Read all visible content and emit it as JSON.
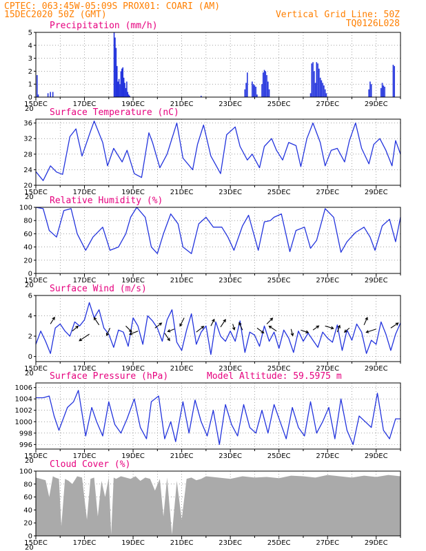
{
  "header": {
    "line1": "CPTEC:   063:45W-05:09S   PROX01: COARI (AM)",
    "line2": "15DEC2020 50Z (GMT)",
    "grid_note": "Vertical Grid Line: 50Z",
    "code": "TQ0126L028"
  },
  "x_ticks": [
    "15DEC",
    "17DEC",
    "19DEC",
    "21DEC",
    "23DEC",
    "25DEC",
    "27DEC",
    "29DEC"
  ],
  "x_subtick": "20",
  "colors": {
    "line": "#2233dd",
    "bar": "#2233dd",
    "cloud": "#aaaaaa",
    "title": "#e6007e",
    "header": "#ff7f00",
    "arrow": "#000000"
  },
  "chart_data": [
    {
      "id": "precip",
      "type": "bar",
      "title": "Precipitation (mm/h)",
      "ylim": [
        0,
        5
      ],
      "yticks": [
        0,
        1,
        2,
        3,
        4,
        5
      ],
      "x_unit": "days since 15DEC 00Z",
      "x": [
        0.05,
        0.1,
        0.5,
        0.6,
        0.7,
        3.22,
        3.26,
        3.3,
        3.34,
        3.38,
        3.42,
        3.46,
        3.5,
        3.54,
        3.58,
        3.62,
        3.66,
        3.7,
        3.74,
        3.78,
        3.82,
        3.86,
        6.8,
        8.6,
        8.65,
        8.7,
        8.9,
        8.95,
        9.0,
        9.05,
        9.1,
        9.3,
        9.35,
        9.4,
        9.45,
        9.5,
        9.55,
        9.6,
        11.3,
        11.35,
        11.4,
        11.45,
        11.5,
        11.55,
        11.6,
        11.65,
        11.7,
        11.75,
        11.8,
        11.85,
        11.9,
        11.95,
        13.7,
        13.75,
        13.8,
        14.2,
        14.25,
        14.3,
        14.35,
        14.7,
        14.75
      ],
      "values": [
        1.7,
        0.2,
        0.3,
        0.4,
        0.4,
        5.0,
        4.6,
        3.8,
        2.4,
        1.2,
        1.4,
        1.0,
        2.0,
        2.2,
        2.3,
        1.5,
        1.1,
        0.7,
        1.2,
        0.4,
        0.2,
        0.1,
        0.1,
        0.6,
        1.1,
        1.9,
        1.2,
        1.0,
        0.9,
        0.8,
        0.2,
        1.0,
        1.9,
        2.1,
        2.0,
        1.7,
        1.2,
        0.6,
        0.3,
        2.6,
        2.7,
        2.0,
        1.1,
        2.7,
        2.6,
        2.2,
        1.5,
        1.3,
        1.1,
        0.9,
        0.6,
        0.3,
        0.6,
        1.2,
        1.0,
        0.7,
        1.1,
        0.9,
        0.8,
        2.5,
        2.4
      ]
    },
    {
      "id": "temp",
      "type": "line",
      "title": "Surface Temperature (nC)",
      "ylim": [
        20,
        37
      ],
      "yticks": [
        20,
        24,
        28,
        32,
        36
      ],
      "x": [
        0,
        0.3,
        0.6,
        0.85,
        1.1,
        1.4,
        1.65,
        1.9,
        2.2,
        2.4,
        2.75,
        2.95,
        3.2,
        3.55,
        3.75,
        4.05,
        4.35,
        4.65,
        4.8,
        5.1,
        5.4,
        5.8,
        6.05,
        6.45,
        6.65,
        6.9,
        7.2,
        7.6,
        7.85,
        8.2,
        8.4,
        8.7,
        8.9,
        9.2,
        9.4,
        9.7,
        9.9,
        10.15,
        10.4,
        10.7,
        10.9,
        11.15,
        11.4,
        11.7,
        11.9,
        12.15,
        12.4,
        12.7,
        12.9,
        13.15,
        13.4,
        13.7,
        13.9,
        14.15,
        14.4,
        14.65,
        14.8,
        15.0
      ],
      "values": [
        23.5,
        21.2,
        25,
        23.4,
        22.8,
        32.5,
        34.5,
        27.5,
        33,
        36.5,
        31,
        25,
        29.5,
        26,
        29,
        23,
        22,
        33.5,
        31,
        24.5,
        28,
        36,
        27,
        24,
        30.5,
        35.5,
        27.5,
        23,
        33,
        35,
        30,
        26.5,
        28,
        24.5,
        30,
        32,
        29,
        26.5,
        31,
        30.2,
        24.8,
        32,
        36,
        31,
        25,
        29,
        29.5,
        26,
        31.5,
        36,
        29.5,
        25.5,
        30.5,
        32,
        29,
        25,
        31.5,
        28
      ]
    },
    {
      "id": "rh",
      "type": "line",
      "title": "Relative Humidity (%)",
      "ylim": [
        0,
        100
      ],
      "yticks": [
        0,
        20,
        40,
        60,
        80,
        100
      ],
      "x": [
        0,
        0.3,
        0.55,
        0.85,
        1.15,
        1.45,
        1.7,
        2.05,
        2.35,
        2.75,
        3.05,
        3.4,
        3.7,
        3.9,
        4.15,
        4.5,
        4.75,
        5.0,
        5.25,
        5.55,
        5.85,
        6.05,
        6.4,
        6.7,
        7.0,
        7.3,
        7.65,
        7.9,
        8.15,
        8.5,
        8.75,
        9.15,
        9.4,
        9.65,
        9.8,
        10.1,
        10.45,
        10.7,
        11.05,
        11.3,
        11.55,
        11.9,
        12.25,
        12.55,
        12.8,
        13.15,
        13.5,
        13.75,
        13.95,
        14.25,
        14.55,
        14.8,
        15.0
      ],
      "values": [
        100,
        98,
        65,
        55,
        95,
        98,
        60,
        35,
        55,
        70,
        35,
        40,
        60,
        85,
        100,
        85,
        40,
        30,
        60,
        90,
        75,
        40,
        30,
        75,
        85,
        70,
        70,
        55,
        35,
        72,
        88,
        35,
        78,
        80,
        85,
        90,
        33,
        65,
        70,
        38,
        50,
        98,
        85,
        32,
        48,
        62,
        70,
        55,
        35,
        72,
        82,
        48,
        85
      ]
    },
    {
      "id": "wind",
      "type": "line",
      "title": "Surface Wind (m/s)",
      "ylim": [
        -0.5,
        6
      ],
      "yticks": [
        0,
        2,
        4,
        6
      ],
      "x": [
        0,
        0.2,
        0.4,
        0.6,
        0.8,
        1.0,
        1.2,
        1.4,
        1.6,
        1.8,
        2.0,
        2.2,
        2.4,
        2.6,
        2.8,
        3.0,
        3.2,
        3.4,
        3.6,
        3.8,
        4.0,
        4.2,
        4.4,
        4.6,
        4.8,
        5.0,
        5.2,
        5.4,
        5.6,
        5.8,
        6.0,
        6.2,
        6.4,
        6.6,
        6.8,
        7.0,
        7.2,
        7.4,
        7.6,
        7.8,
        8.0,
        8.2,
        8.4,
        8.6,
        8.8,
        9.0,
        9.2,
        9.4,
        9.6,
        9.8,
        10.0,
        10.2,
        10.4,
        10.6,
        10.8,
        11.0,
        11.2,
        11.4,
        11.6,
        11.8,
        12.0,
        12.2,
        12.4,
        12.6,
        12.8,
        13.0,
        13.2,
        13.4,
        13.6,
        13.8,
        14.0,
        14.2,
        14.4,
        14.6,
        14.8,
        15.0
      ],
      "values": [
        1.2,
        2.5,
        1.5,
        0.3,
        2.8,
        3.2,
        2.5,
        2.0,
        3.4,
        3.0,
        3.6,
        5.3,
        3.8,
        4.6,
        2.8,
        2.2,
        0.9,
        2.6,
        2.4,
        1.0,
        3.8,
        3.0,
        1.2,
        4.0,
        3.5,
        2.8,
        1.5,
        3.6,
        4.6,
        1.4,
        0.6,
        2.6,
        4.2,
        1.2,
        2.4,
        3.0,
        0.2,
        3.4,
        2.0,
        1.5,
        2.5,
        1.5,
        3.5,
        0.4,
        2.4,
        2.1,
        1.0,
        3.0,
        1.5,
        2.4,
        0.8,
        2.6,
        1.8,
        0.4,
        2.5,
        1.5,
        2.3,
        1.6,
        0.9,
        2.4,
        1.8,
        1.4,
        3.1,
        0.6,
        2.6,
        1.6,
        3.2,
        2.4,
        0.3,
        1.6,
        1.2,
        3.4,
        2.2,
        0.6,
        2.2,
        3.3
      ]
    },
    {
      "id": "pressure",
      "type": "line",
      "title": "Surface Pressure (hPa)",
      "annotation": "Model Altitude: 59.5975  m",
      "ylim": [
        995.2,
        1006.8
      ],
      "yticks": [
        996,
        998,
        1000,
        1002,
        1004,
        1006
      ],
      "x": [
        0,
        0.3,
        0.55,
        0.75,
        0.95,
        1.3,
        1.55,
        1.75,
        2.05,
        2.3,
        2.5,
        2.75,
        3.0,
        3.25,
        3.5,
        3.75,
        4.05,
        4.3,
        4.55,
        4.75,
        5.05,
        5.3,
        5.55,
        5.75,
        6.05,
        6.3,
        6.55,
        6.8,
        7.05,
        7.3,
        7.55,
        7.8,
        8.05,
        8.3,
        8.55,
        8.8,
        9.05,
        9.3,
        9.55,
        9.8,
        10.05,
        10.3,
        10.55,
        10.8,
        11.05,
        11.3,
        11.55,
        11.8,
        12.05,
        12.3,
        12.55,
        12.8,
        13.05,
        13.3,
        13.55,
        13.8,
        14.05,
        14.3,
        14.55,
        14.8,
        15.0
      ],
      "values": [
        1004.2,
        1004.2,
        1004.5,
        1001,
        998.5,
        1002.5,
        1003.5,
        1005.5,
        997.5,
        1002.5,
        1000,
        997.5,
        1003.5,
        999.5,
        998,
        1000.5,
        1004,
        999,
        997,
        1003.5,
        1004.5,
        997,
        1000,
        996.5,
        1003.5,
        998,
        1003.8,
        1000,
        997.5,
        1002,
        996,
        1003,
        999.5,
        997.5,
        1003,
        999,
        998,
        1002,
        998,
        1003,
        1000,
        997,
        1002.5,
        999,
        997.5,
        1003.5,
        998,
        1000,
        1002.5,
        997,
        1004,
        998.5,
        996,
        1001,
        1000,
        999,
        1005,
        998.5,
        997,
        1000.5,
        1000.5
      ]
    },
    {
      "id": "cloud",
      "type": "area",
      "title": "Cloud Cover (%)",
      "ylim": [
        0,
        100
      ],
      "yticks": [
        0,
        20,
        40,
        60,
        80,
        100
      ],
      "x": [
        0,
        0.2,
        0.4,
        0.55,
        0.7,
        0.8,
        0.95,
        1.05,
        1.2,
        1.35,
        1.5,
        1.7,
        1.9,
        2.1,
        2.25,
        2.4,
        2.55,
        2.7,
        2.85,
        3.0,
        3.1,
        3.2,
        3.3,
        3.5,
        3.7,
        3.9,
        4.1,
        4.3,
        4.5,
        4.7,
        4.9,
        5.1,
        5.25,
        5.4,
        5.6,
        5.8,
        6.0,
        6.2,
        6.4,
        6.6,
        6.8,
        7.0,
        7.5,
        8.0,
        8.5,
        9.0,
        9.5,
        10.0,
        10.5,
        11.0,
        11.5,
        12.0,
        12.5,
        13.0,
        13.5,
        14.0,
        14.5,
        15.0
      ],
      "values": [
        90,
        88,
        86,
        60,
        92,
        90,
        88,
        15,
        88,
        85,
        80,
        92,
        90,
        25,
        88,
        90,
        30,
        85,
        60,
        90,
        2,
        90,
        88,
        92,
        90,
        88,
        92,
        85,
        90,
        88,
        70,
        88,
        30,
        90,
        2,
        85,
        25,
        88,
        90,
        86,
        88,
        92,
        90,
        88,
        92,
        90,
        91,
        89,
        93,
        92,
        90,
        94,
        92,
        90,
        93,
        91,
        94,
        92
      ]
    }
  ],
  "wind_arrows": {
    "x": [
      0.6,
      1.5,
      2.2,
      2.6,
      3.05,
      3.7,
      4.2,
      4.9,
      5.3,
      5.7,
      6.1,
      6.6,
      7.2,
      7.6,
      8.1,
      8.5,
      9.1,
      9.5,
      9.9,
      10.5,
      10.9,
      11.4,
      11.9,
      12.4,
      12.9,
      13.5,
      14.0,
      14.6
    ],
    "speed": [
      3.2,
      2.5,
      2.2,
      3.1,
      2.8,
      3.0,
      2.5,
      2.8,
      2.3,
      2.7,
      3.8,
      2.4,
      3.0,
      2.9,
      3.2,
      2.6,
      2.8,
      3.2,
      2.5,
      2.7,
      2.6,
      2.6,
      3.0,
      2.4,
      2.8,
      3.1,
      2.7,
      2.8
    ],
    "u": [
      0.5,
      0.7,
      -1.2,
      -0.6,
      -0.4,
      0.7,
      -1.0,
      0.8,
      0.6,
      -0.8,
      -0.5,
      0.9,
      0.4,
      0.6,
      0.2,
      -0.4,
      0.8,
      0.7,
      -0.9,
      0.2,
      0.9,
      0.7,
      1.0,
      0.3,
      -0.6,
      0.4,
      -1.2,
      0.9
    ],
    "v": [
      0.8,
      0.6,
      -0.8,
      0.9,
      -0.9,
      -0.7,
      -0.4,
      0.6,
      -0.9,
      -0.3,
      -1.0,
      0.7,
      0.8,
      0.9,
      -0.7,
      0.9,
      -0.6,
      0.7,
      0.6,
      -0.8,
      -0.3,
      0.5,
      -0.3,
      0.8,
      -0.5,
      0.9,
      -0.4,
      0.6
    ]
  }
}
